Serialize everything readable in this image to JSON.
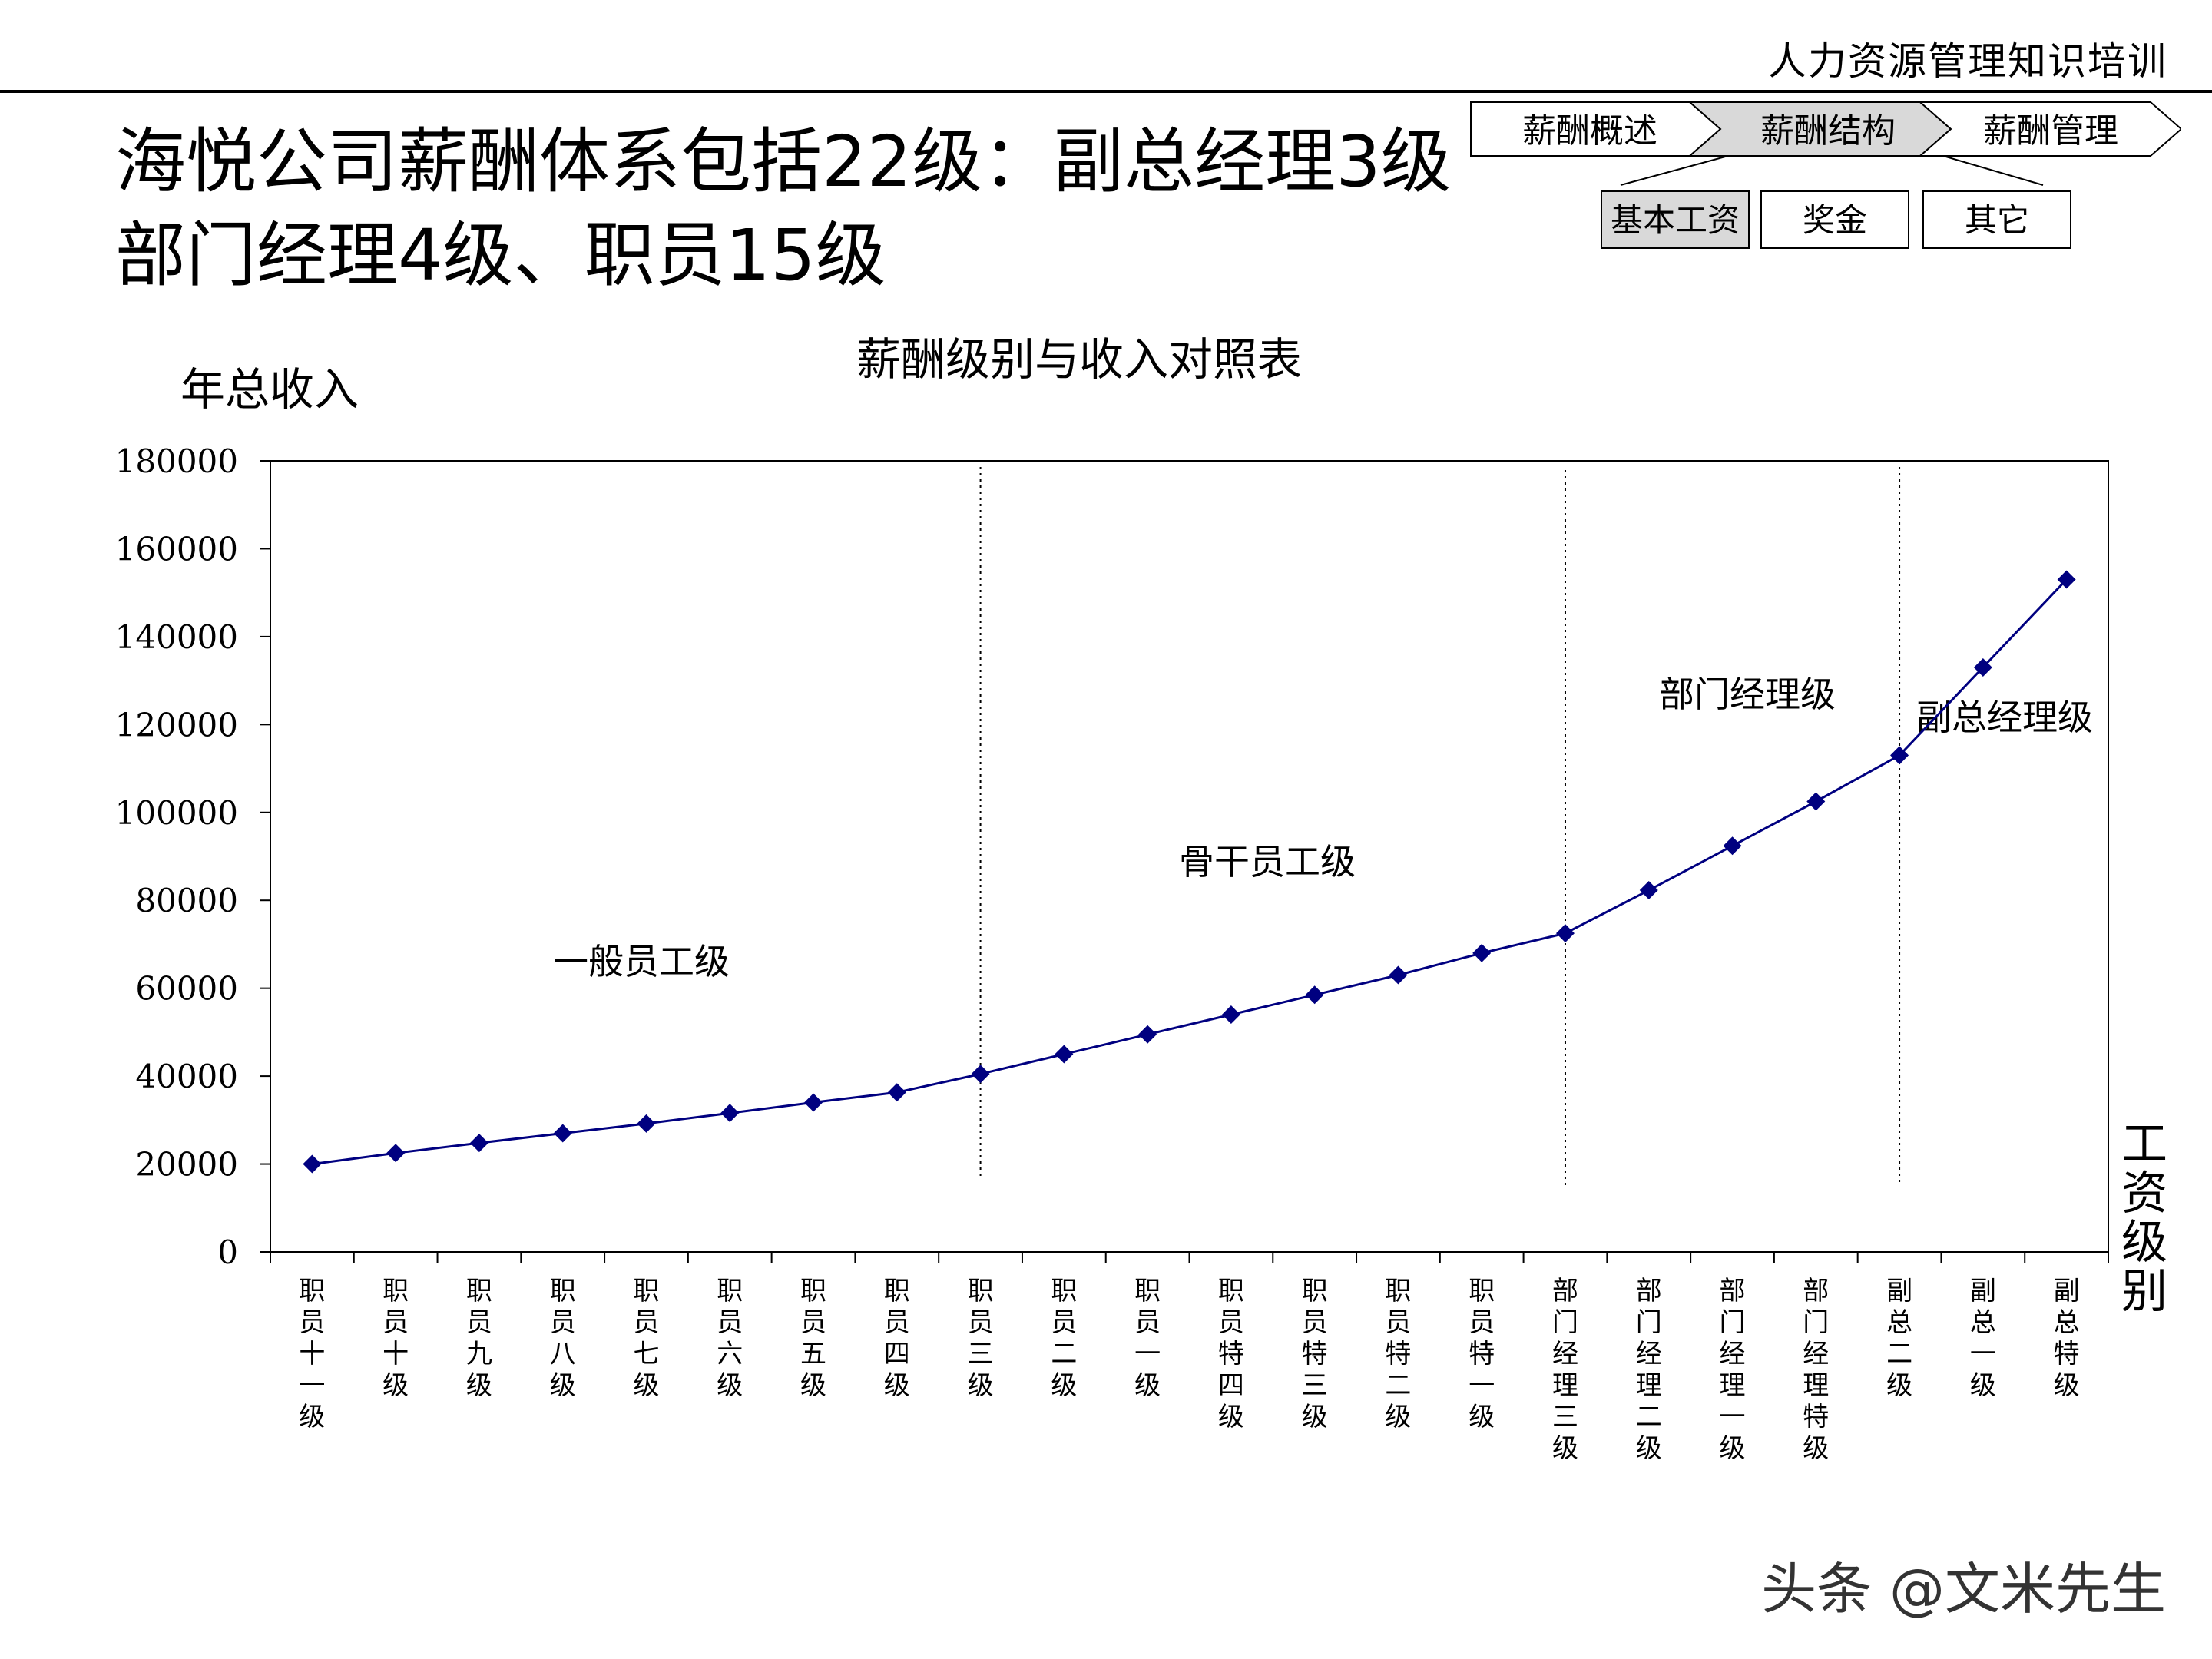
{
  "header": {
    "caption": "人力资源管理知识培训"
  },
  "slide": {
    "title_line1": "海悦公司薪酬体系包括22级：副总经理3级",
    "title_line2": "部门经理4级、职员15级"
  },
  "nav": {
    "steps": [
      {
        "label": "薪酬概述",
        "active": false
      },
      {
        "label": "薪酬结构",
        "active": true
      },
      {
        "label": "薪酬管理",
        "active": false
      }
    ],
    "subitems": [
      {
        "label": "基本工资",
        "active": true
      },
      {
        "label": "奖金",
        "active": false
      },
      {
        "label": "其它",
        "active": false
      }
    ]
  },
  "chart_data": {
    "type": "line",
    "title": "薪酬级别与收入对照表",
    "ylabel": "年总收入",
    "xlabel": "工资级别",
    "ylim": [
      0,
      180000
    ],
    "yticks": [
      0,
      20000,
      40000,
      60000,
      80000,
      100000,
      120000,
      140000,
      160000,
      180000
    ],
    "grid": false,
    "categories": [
      "职员十一级",
      "职员十级",
      "职员九级",
      "职员八级",
      "职员七级",
      "职员六级",
      "职员五级",
      "职员四级",
      "职员三级",
      "职员二级",
      "职员一级",
      "职员特四级",
      "职员特三级",
      "职员特二级",
      "职员特一级",
      "部门经理三级",
      "部门经理二级",
      "部门经理一级",
      "部门经理特级",
      "副总二级",
      "副总一级",
      "副总特级"
    ],
    "series": [
      {
        "values": [
          20000,
          22500,
          24800,
          27000,
          29200,
          31600,
          34000,
          36300,
          40500,
          45000,
          49500,
          54000,
          58500,
          63000,
          68000,
          72500,
          82300,
          92400,
          102500,
          113000,
          133000,
          153000
        ]
      }
    ],
    "line_color": "#000080",
    "marker": "diamond",
    "dividers_after_category": [
      "职员三级",
      "部门经理三级",
      "副总二级"
    ],
    "region_labels": [
      "一般员工级",
      "骨干员工级",
      "部门经理级",
      "副总经理级"
    ]
  },
  "watermark": {
    "text": "头条 @文米先生"
  }
}
